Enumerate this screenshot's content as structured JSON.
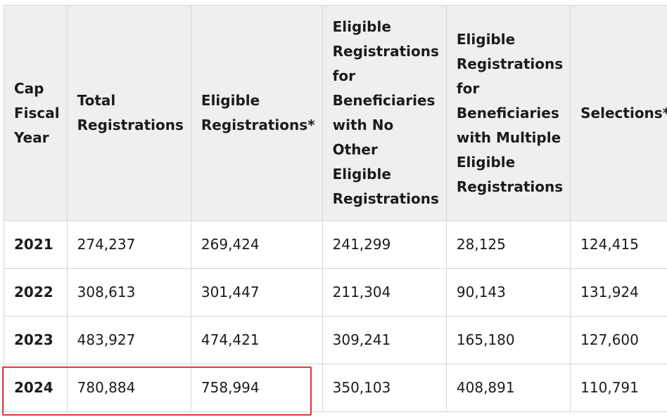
{
  "table": {
    "headers": [
      "Cap Fiscal Year",
      "Total Registrations",
      "Eligible Registrations*",
      "Eligible Registrations for Beneficiaries with No Other Eligible Registrations",
      "Eligible Registrations for Beneficiaries with Multiple Eligible Registrations",
      "Selections**"
    ],
    "rows": [
      [
        "2021",
        "274,237",
        "269,424",
        "241,299",
        "28,125",
        "124,415"
      ],
      [
        "2022",
        "308,613",
        "301,447",
        "211,304",
        "90,143",
        "131,924"
      ],
      [
        "2023",
        "483,927",
        "474,421",
        "309,241",
        "165,180",
        "127,600"
      ],
      [
        "2024",
        "780,884",
        "758,994",
        "350,103",
        "408,891",
        "110,791"
      ]
    ]
  },
  "highlight": {
    "color": "#e5343b",
    "row": "2024",
    "columns": [
      "Cap Fiscal Year",
      "Total Registrations",
      "Eligible Registrations*"
    ]
  }
}
